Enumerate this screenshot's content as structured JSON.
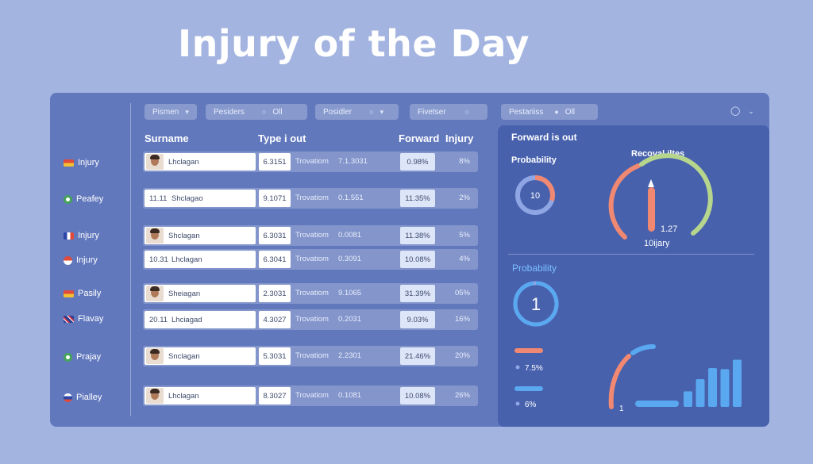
{
  "title": "Injury of the Day",
  "filters": [
    {
      "label": "Pismen",
      "icon": "chevron-down-icon"
    },
    {
      "label": "Pesiders",
      "extra": "Oll"
    },
    {
      "label": "Posidler",
      "icon": "lock-icon"
    },
    {
      "label": "Fivetser",
      "icon": "lock-icon"
    },
    {
      "label": "Pestariiss",
      "extra": "Oll"
    }
  ],
  "table": {
    "headers": {
      "surname": "Surname",
      "type": "Type i out",
      "forward": "Forward",
      "injury": "Injury"
    },
    "rows": [
      {
        "side": "Injury",
        "name": "Lhclagan",
        "num": "",
        "avatar": true,
        "type": "6.3151",
        "txt1": "Trovatiom",
        "txt2": "7.1.3031",
        "fwd": "0.98%",
        "inj": "8%"
      },
      {
        "side": "Peafey",
        "name": "Shclagao",
        "num": "11.11",
        "avatar": false,
        "type": "9.1071",
        "txt1": "Trovatiom",
        "txt2": "0.1.551",
        "fwd": "11.35%",
        "inj": "2%"
      },
      {
        "side": "Injury",
        "name": "Shclagan",
        "num": "",
        "avatar": true,
        "type": "6.3031",
        "txt1": "Trovatiom",
        "txt2": "0.0081",
        "fwd": "11.38%",
        "inj": "5%"
      },
      {
        "side": "Injury",
        "name": "Lhclagan",
        "num": "10.31",
        "avatar": false,
        "type": "6.3041",
        "txt1": "Trovatiom",
        "txt2": "0.3091",
        "fwd": "10.08%",
        "inj": "4%"
      },
      {
        "side": "Pasily",
        "name": "Sheiagan",
        "num": "",
        "avatar": true,
        "type": "2.3031",
        "txt1": "Trovatiom",
        "txt2": "9.1065",
        "fwd": "31.39%",
        "inj": "05%"
      },
      {
        "side": "Flavay",
        "name": "Lhciagad",
        "num": "20.11",
        "avatar": false,
        "type": "4.3027",
        "txt1": "Trovatiom",
        "txt2": "0.2031",
        "fwd": "9.03%",
        "inj": "16%"
      },
      {
        "side": "Prajay",
        "name": "Snclagan",
        "num": "",
        "avatar": true,
        "type": "5.3031",
        "txt1": "Trovatiom",
        "txt2": "2.2301",
        "fwd": "21.46%",
        "inj": "20%"
      },
      {
        "side": "Pialley",
        "name": "Lhclagan",
        "num": "",
        "avatar": true,
        "type": "8.3027",
        "txt1": "Trovatiom",
        "txt2": "0.1081",
        "fwd": "10.08%",
        "inj": "26%"
      }
    ]
  },
  "right": {
    "title": "Forward is out",
    "prob1_label": "Probability",
    "prob1_value": "10",
    "prob1_fraction": 0.3,
    "gauge_title": "Recoval iltes",
    "gauge_value": "1.27",
    "gauge_caption": "10ijary",
    "prob2_label": "Probability",
    "prob2_value": "1",
    "prob2_fraction": 0.98,
    "legend": [
      {
        "value": "7.5%",
        "color": "#f08872"
      },
      {
        "value": "6%",
        "color": "#5aa8f0"
      }
    ],
    "mini_bars": [
      0.28,
      0.5,
      0.7,
      0.68,
      0.85
    ],
    "arc_value": "1"
  },
  "colors": {
    "accent_orange": "#f08872",
    "accent_blue": "#5aa8f0",
    "accent_green": "#b6d68e",
    "panel": "#6178bd",
    "right_panel": "#4761ad"
  }
}
